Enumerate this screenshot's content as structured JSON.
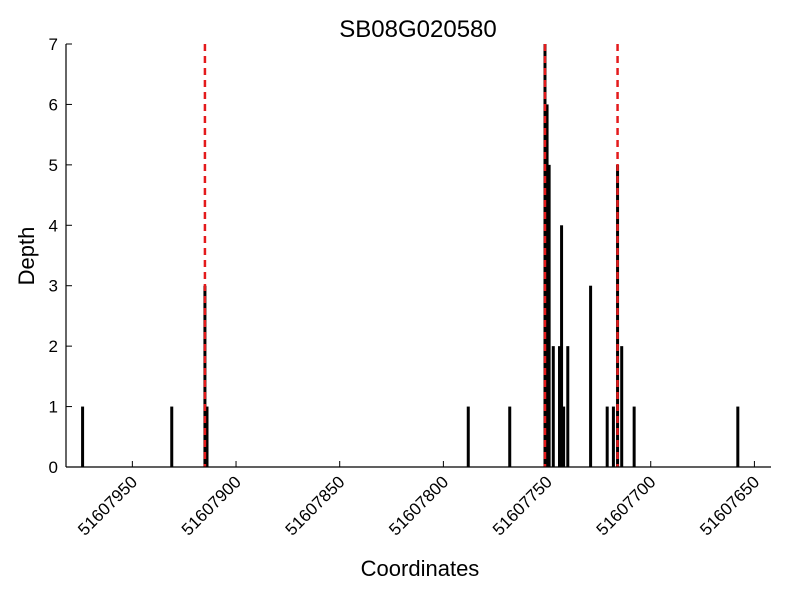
{
  "chart_data": {
    "type": "bar",
    "title": "SB08G020580",
    "xlabel": "Coordinates",
    "ylabel": "Depth",
    "x_reversed": true,
    "xlim": [
      51607982,
      51607642
    ],
    "ylim": [
      0,
      7
    ],
    "yticks": [
      0,
      1,
      2,
      3,
      4,
      5,
      6,
      7
    ],
    "xticks": [
      51607950,
      51607900,
      51607850,
      51607800,
      51607750,
      51607700,
      51607650
    ],
    "grid": false,
    "bars": [
      {
        "x": 51607974,
        "y": 1
      },
      {
        "x": 51607931,
        "y": 1
      },
      {
        "x": 51607915,
        "y": 3
      },
      {
        "x": 51607914,
        "y": 1
      },
      {
        "x": 51607788,
        "y": 1
      },
      {
        "x": 51607768,
        "y": 1
      },
      {
        "x": 51607751,
        "y": 7
      },
      {
        "x": 51607750,
        "y": 6
      },
      {
        "x": 51607749,
        "y": 5
      },
      {
        "x": 51607747,
        "y": 2
      },
      {
        "x": 51607744,
        "y": 2
      },
      {
        "x": 51607743,
        "y": 4
      },
      {
        "x": 51607742,
        "y": 1
      },
      {
        "x": 51607740,
        "y": 2
      },
      {
        "x": 51607729,
        "y": 3
      },
      {
        "x": 51607721,
        "y": 1
      },
      {
        "x": 51607718,
        "y": 1
      },
      {
        "x": 51607716,
        "y": 5
      },
      {
        "x": 51607714,
        "y": 2
      },
      {
        "x": 51607708,
        "y": 1
      },
      {
        "x": 51607658,
        "y": 1
      }
    ],
    "reference_lines": [
      {
        "x": 51607915,
        "color": "#e41a1c",
        "style": "dashed"
      },
      {
        "x": 51607751,
        "color": "#e41a1c",
        "style": "dashed"
      },
      {
        "x": 51607716,
        "color": "#e41a1c",
        "style": "dashed"
      }
    ],
    "bar_color": "#000000"
  }
}
